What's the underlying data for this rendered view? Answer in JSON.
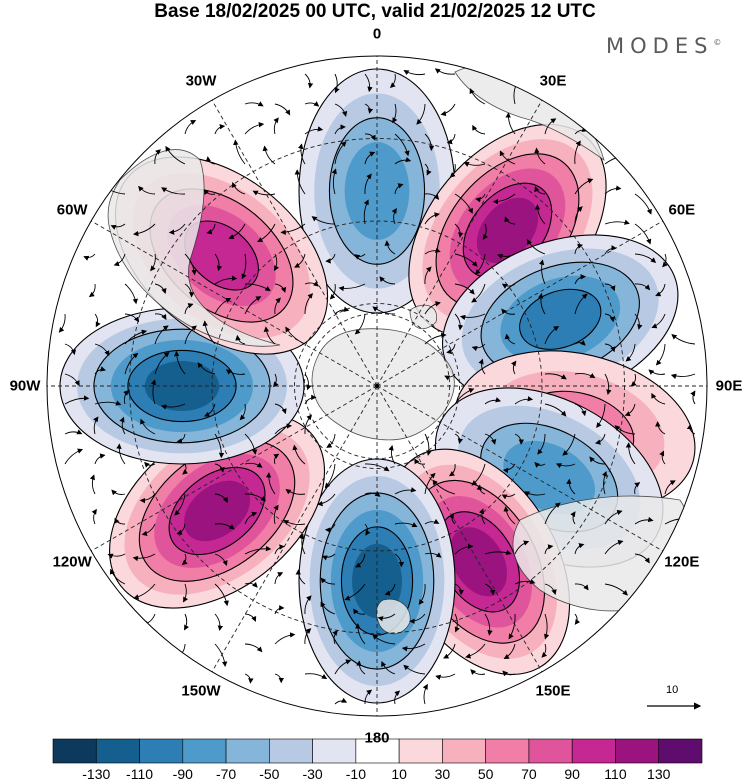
{
  "title": "Base 18/02/2025 00 UTC, valid 21/02/2025 12 UTC",
  "brand": "MODES",
  "brand_mark": "©",
  "longitude_labels": [
    "0",
    "30E",
    "60E",
    "90E",
    "120E",
    "150E",
    "180",
    "150W",
    "120W",
    "90W",
    "60W",
    "30W"
  ],
  "reference_vector": {
    "label": "10"
  },
  "colorbar": {
    "ticks": [
      "-130",
      "-110",
      "-90",
      "-70",
      "-50",
      "-30",
      "-10",
      "10",
      "30",
      "50",
      "70",
      "90",
      "110",
      "130"
    ],
    "colors": [
      "#0d3a5c",
      "#155f8f",
      "#2c7eb5",
      "#4e9bcb",
      "#86b5da",
      "#b7c9e3",
      "#e2e5f1",
      "#ffffff",
      "#fbd8dc",
      "#f7b0bd",
      "#f07ea6",
      "#e0549c",
      "#c52793",
      "#9a137f",
      "#5e0d6e"
    ]
  },
  "anomaly_cells": [
    {
      "lon": 0,
      "sign": -1,
      "peak": 90
    },
    {
      "lon": 40,
      "sign": 1,
      "peak": 120
    },
    {
      "lon": 70,
      "sign": -1,
      "peak": 110
    },
    {
      "lon": 103,
      "sign": 1,
      "peak": 60
    },
    {
      "lon": 118,
      "sign": -1,
      "peak": 80
    },
    {
      "lon": 150,
      "sign": 1,
      "peak": 120
    },
    {
      "lon": 180,
      "sign": -1,
      "peak": 120
    },
    {
      "lon": 232,
      "sign": 1,
      "peak": 120
    },
    {
      "lon": 270,
      "sign": -1,
      "peak": 125
    },
    {
      "lon": 310,
      "sign": 1,
      "peak": 110
    }
  ]
}
